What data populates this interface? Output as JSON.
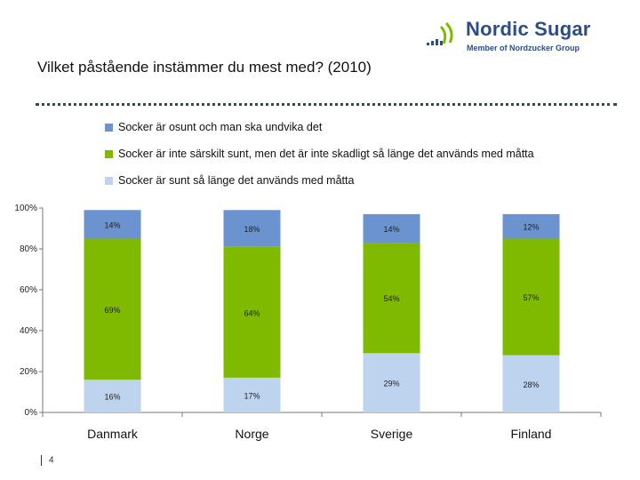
{
  "logo": {
    "brand": "Nordic Sugar",
    "tagline": "Member of Nordzucker Group",
    "color": "#2b4d8c"
  },
  "slide": {
    "title": "Vilket påstående instämmer du mest med? (2010)",
    "page_number": "4"
  },
  "chart_data": {
    "type": "bar",
    "stacked": true,
    "title": "Vilket påstående instämmer du mest med? (2010)",
    "categories": [
      "Danmark",
      "Norge",
      "Sverige",
      "Finland"
    ],
    "series": [
      {
        "name": "Socker är sunt så länge det används med måtta",
        "color": "#bdd3ee",
        "values": [
          16,
          17,
          29,
          28
        ],
        "labels": [
          "16%",
          "17%",
          "29%",
          "28%"
        ]
      },
      {
        "name": "Socker är inte särskilt sunt, men det är inte skadligt så länge det används med måtta",
        "color": "#7fba00",
        "values": [
          69,
          64,
          54,
          57
        ],
        "labels": [
          "69%",
          "64%",
          "54%",
          "57%"
        ]
      },
      {
        "name": "Socker är osunt och man ska undvika det",
        "color": "#6b93cf",
        "values": [
          14,
          18,
          14,
          12
        ],
        "labels": [
          "14%",
          "18%",
          "14%",
          "12%"
        ]
      }
    ],
    "yticks": [
      "0%",
      "20%",
      "40%",
      "60%",
      "80%",
      "100%"
    ],
    "ylim": [
      0,
      100
    ],
    "xlabel": "",
    "ylabel": "",
    "legend": "top"
  }
}
